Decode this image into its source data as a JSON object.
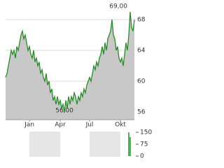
{
  "chart_data": [
    {
      "type": "line",
      "x": [
        0,
        1,
        2,
        3,
        4,
        5,
        6,
        7,
        8,
        9,
        10,
        11,
        12,
        13,
        14,
        15,
        16,
        17,
        18,
        19,
        20,
        21,
        22,
        23,
        24,
        25,
        26,
        27,
        28,
        29,
        30,
        31,
        32,
        33,
        34,
        35,
        36,
        37,
        38,
        39,
        40,
        41,
        42,
        43,
        44,
        45,
        46,
        47,
        48,
        49,
        50,
        51,
        52,
        53,
        54,
        55,
        56,
        57,
        58,
        59,
        60,
        61,
        62,
        63,
        64,
        65,
        66,
        67,
        68,
        69,
        70,
        71,
        72,
        73,
        74,
        75,
        76,
        77,
        78,
        79,
        80,
        81,
        82,
        83,
        84,
        85,
        86,
        87,
        88,
        89,
        90,
        91,
        92
      ],
      "series": [
        {
          "color": "#2a8a2a",
          "values": [
            60.5,
            61,
            62,
            63,
            64,
            63.5,
            64,
            63,
            64.5,
            64,
            65,
            66,
            66.5,
            65.5,
            66,
            65,
            64,
            64.5,
            63.5,
            63,
            64,
            62.5,
            63,
            62,
            62.5,
            61,
            61.5,
            60.5,
            60,
            61,
            59.5,
            60,
            58.5,
            59,
            57.5,
            58,
            57,
            58,
            57,
            57.5,
            56.5,
            57,
            56,
            57.5,
            56.5,
            58,
            57,
            58,
            57.5,
            58.5,
            58,
            57,
            58,
            57.5,
            58.5,
            58,
            59,
            58.5,
            59.5,
            60,
            60.5,
            60,
            61,
            62,
            61.5,
            62.5,
            62,
            63,
            63.5,
            64.5,
            63.5,
            65,
            64,
            65.5,
            66,
            66.5,
            68,
            66,
            65.5,
            64,
            64.5,
            63,
            62.5,
            63,
            62,
            63.5,
            65,
            64,
            66,
            69,
            67,
            66.5,
            68
          ]
        }
      ],
      "fill": "#c8c8c8",
      "xlim": [
        0,
        92
      ],
      "xticks": [
        {
          "value": 17,
          "label": "Jan"
        },
        {
          "value": 39,
          "label": "Apr"
        },
        {
          "value": 60,
          "label": "Jul"
        },
        {
          "value": 82,
          "label": "Okt"
        }
      ],
      "ylim": [
        55,
        70
      ],
      "yticks": [
        56,
        60,
        64,
        68
      ],
      "grid": true,
      "annotations": [
        {
          "text": "69,00",
          "x": 89,
          "y": 69
        },
        {
          "text": "56,00",
          "x": 42,
          "y": 56
        }
      ]
    },
    {
      "type": "bar",
      "x": [
        88,
        89
      ],
      "values": [
        150,
        120
      ],
      "color": "#2a8a2a",
      "xlim": [
        0,
        92
      ],
      "ylim": [
        0,
        150
      ],
      "yticks": [
        150,
        75,
        0
      ],
      "grid": false
    }
  ]
}
